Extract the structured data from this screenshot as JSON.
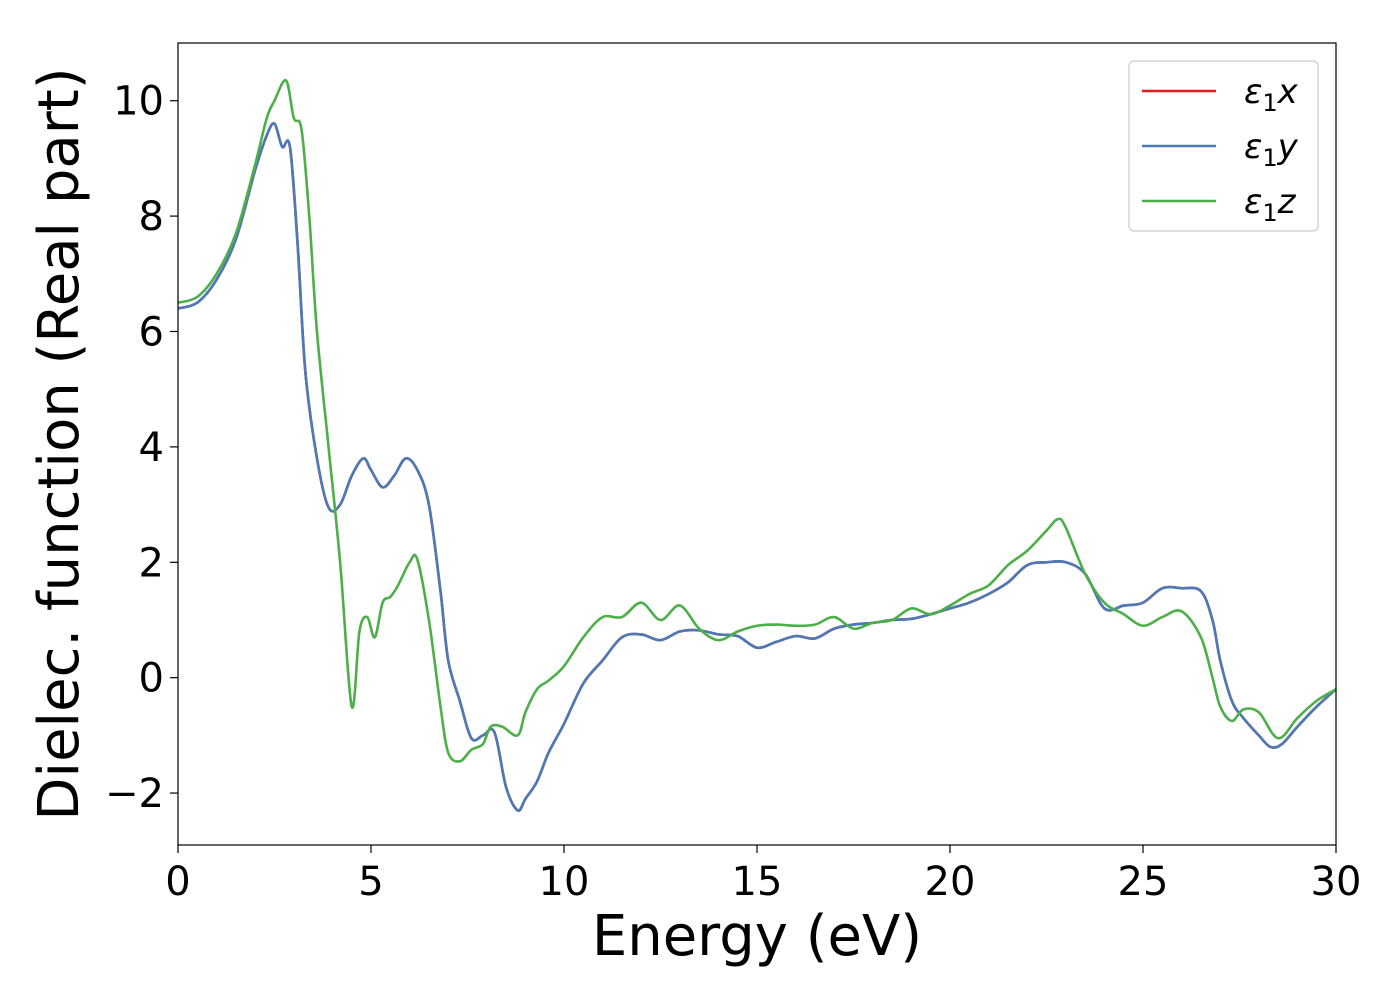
{
  "chart_data": {
    "type": "line",
    "xlabel": "Energy (eV)",
    "ylabel": "Dielec. function (Real part)",
    "xlim": [
      0,
      30
    ],
    "ylim": [
      -2.9,
      11.0
    ],
    "xticks": [
      0,
      5,
      10,
      15,
      20,
      25,
      30
    ],
    "yticks": [
      -2,
      0,
      2,
      4,
      6,
      8,
      10
    ],
    "xtick_labels": [
      "0",
      "5",
      "10",
      "15",
      "20",
      "25",
      "30"
    ],
    "ytick_labels": [
      "−2",
      "0",
      "2",
      "4",
      "6",
      "8",
      "10"
    ],
    "grid": false,
    "legend_position": "top-right",
    "series": [
      {
        "name": "ε₁x",
        "legend_base": "ε",
        "legend_sub": "1",
        "legend_var": "x",
        "color": "#e41a1c",
        "x": [
          0,
          0.5,
          1,
          1.5,
          2,
          2.3,
          2.5,
          2.7,
          2.9,
          3.1,
          3.3,
          3.6,
          3.9,
          4.2,
          4.5,
          4.8,
          5.0,
          5.3,
          5.6,
          5.9,
          6.2,
          6.5,
          6.8,
          7.0,
          7.3,
          7.6,
          7.9,
          8.2,
          8.5,
          8.8,
          9.0,
          9.3,
          9.6,
          10.0,
          10.5,
          11.0,
          11.5,
          12.0,
          12.5,
          13.0,
          13.5,
          14.0,
          14.5,
          15.0,
          15.5,
          16.0,
          16.5,
          17.0,
          17.5,
          18.0,
          18.5,
          19.0,
          19.5,
          20.0,
          20.5,
          21.0,
          21.5,
          22.0,
          22.5,
          23.0,
          23.5,
          24.0,
          24.5,
          25.0,
          25.5,
          26.0,
          26.5,
          26.8,
          27.0,
          27.3,
          27.6,
          28.0,
          28.3,
          28.6,
          29.0,
          29.5,
          30.0
        ],
        "y": [
          6.4,
          6.5,
          6.9,
          7.6,
          8.8,
          9.4,
          9.6,
          9.2,
          9.2,
          7.5,
          5.3,
          3.8,
          2.95,
          3.0,
          3.5,
          3.8,
          3.6,
          3.3,
          3.5,
          3.8,
          3.6,
          3.0,
          1.5,
          0.3,
          -0.4,
          -1.05,
          -1.0,
          -0.95,
          -1.9,
          -2.3,
          -2.1,
          -1.8,
          -1.3,
          -0.8,
          -0.1,
          0.3,
          0.7,
          0.75,
          0.65,
          0.8,
          0.82,
          0.75,
          0.72,
          0.52,
          0.62,
          0.72,
          0.68,
          0.85,
          0.92,
          0.95,
          1.0,
          1.02,
          1.1,
          1.2,
          1.3,
          1.45,
          1.65,
          1.95,
          2.0,
          2.0,
          1.8,
          1.2,
          1.25,
          1.3,
          1.55,
          1.55,
          1.5,
          1.0,
          0.3,
          -0.4,
          -0.7,
          -1.0,
          -1.2,
          -1.15,
          -0.85,
          -0.5,
          -0.2
        ]
      },
      {
        "name": "ε₁y",
        "legend_base": "ε",
        "legend_sub": "1",
        "legend_var": "y",
        "color": "#4a7ab7",
        "x": [
          0,
          0.5,
          1,
          1.5,
          2,
          2.3,
          2.5,
          2.7,
          2.9,
          3.1,
          3.3,
          3.6,
          3.9,
          4.2,
          4.5,
          4.8,
          5.0,
          5.3,
          5.6,
          5.9,
          6.2,
          6.5,
          6.8,
          7.0,
          7.3,
          7.6,
          7.9,
          8.2,
          8.5,
          8.8,
          9.0,
          9.3,
          9.6,
          10.0,
          10.5,
          11.0,
          11.5,
          12.0,
          12.5,
          13.0,
          13.5,
          14.0,
          14.5,
          15.0,
          15.5,
          16.0,
          16.5,
          17.0,
          17.5,
          18.0,
          18.5,
          19.0,
          19.5,
          20.0,
          20.5,
          21.0,
          21.5,
          22.0,
          22.5,
          23.0,
          23.5,
          24.0,
          24.5,
          25.0,
          25.5,
          26.0,
          26.5,
          26.8,
          27.0,
          27.3,
          27.6,
          28.0,
          28.3,
          28.6,
          29.0,
          29.5,
          30.0
        ],
        "y": [
          6.4,
          6.5,
          6.9,
          7.6,
          8.8,
          9.4,
          9.6,
          9.2,
          9.2,
          7.5,
          5.3,
          3.8,
          2.95,
          3.0,
          3.5,
          3.8,
          3.6,
          3.3,
          3.5,
          3.8,
          3.6,
          3.0,
          1.5,
          0.3,
          -0.4,
          -1.05,
          -1.0,
          -0.95,
          -1.9,
          -2.3,
          -2.1,
          -1.8,
          -1.3,
          -0.8,
          -0.1,
          0.3,
          0.7,
          0.75,
          0.65,
          0.8,
          0.82,
          0.75,
          0.72,
          0.52,
          0.62,
          0.72,
          0.68,
          0.85,
          0.92,
          0.95,
          1.0,
          1.02,
          1.1,
          1.2,
          1.3,
          1.45,
          1.65,
          1.95,
          2.0,
          2.0,
          1.8,
          1.2,
          1.25,
          1.3,
          1.55,
          1.55,
          1.5,
          1.0,
          0.3,
          -0.4,
          -0.7,
          -1.0,
          -1.2,
          -1.15,
          -0.85,
          -0.5,
          -0.2
        ]
      },
      {
        "name": "ε₁z",
        "legend_base": "ε",
        "legend_sub": "1",
        "legend_var": "z",
        "color": "#4daf4a",
        "x": [
          0,
          0.5,
          1,
          1.5,
          2,
          2.3,
          2.5,
          2.8,
          3.0,
          3.2,
          3.4,
          3.6,
          3.9,
          4.2,
          4.5,
          4.7,
          4.9,
          5.1,
          5.3,
          5.5,
          5.7,
          6.0,
          6.2,
          6.5,
          6.8,
          7.0,
          7.3,
          7.6,
          7.9,
          8.1,
          8.4,
          8.8,
          9.0,
          9.3,
          9.6,
          10.0,
          10.5,
          11.0,
          11.5,
          12.0,
          12.5,
          13.0,
          13.5,
          14.0,
          14.5,
          15.0,
          15.5,
          16.0,
          16.5,
          17.0,
          17.5,
          18.0,
          18.5,
          19.0,
          19.5,
          20.0,
          20.5,
          21.0,
          21.5,
          22.0,
          22.5,
          22.8,
          23.0,
          23.5,
          24.0,
          24.5,
          25.0,
          25.5,
          26.0,
          26.5,
          26.8,
          27.0,
          27.3,
          27.6,
          28.0,
          28.5,
          29.0,
          29.5,
          30.0
        ],
        "y": [
          6.5,
          6.6,
          7.0,
          7.7,
          8.9,
          9.7,
          10.0,
          10.35,
          9.7,
          9.5,
          8.0,
          6.0,
          4.0,
          2.0,
          -0.5,
          0.8,
          1.05,
          0.7,
          1.3,
          1.4,
          1.6,
          2.0,
          2.05,
          1.0,
          -0.5,
          -1.3,
          -1.45,
          -1.25,
          -1.15,
          -0.85,
          -0.85,
          -1.0,
          -0.6,
          -0.2,
          -0.05,
          0.2,
          0.7,
          1.05,
          1.05,
          1.3,
          1.0,
          1.25,
          0.85,
          0.65,
          0.8,
          0.9,
          0.92,
          0.9,
          0.92,
          1.05,
          0.85,
          0.95,
          1.0,
          1.2,
          1.1,
          1.25,
          1.45,
          1.6,
          1.95,
          2.2,
          2.55,
          2.75,
          2.6,
          1.8,
          1.3,
          1.1,
          0.9,
          1.05,
          1.15,
          0.7,
          0.0,
          -0.5,
          -0.75,
          -0.55,
          -0.6,
          -1.05,
          -0.7,
          -0.4,
          -0.2
        ]
      }
    ]
  }
}
